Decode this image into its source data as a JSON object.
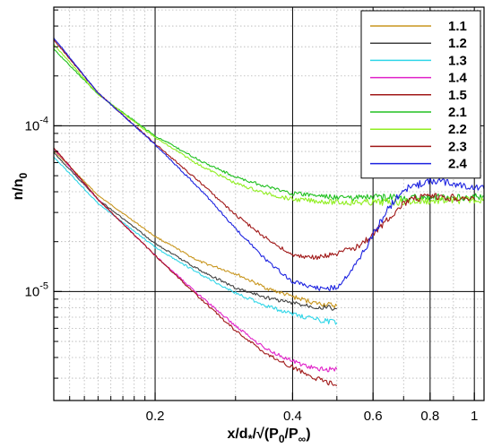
{
  "chart_data": {
    "type": "line",
    "xlabel": "x/d∗/√(P₀/P∞)",
    "ylabel": "n/n₀",
    "x_scale": "log",
    "y_scale": "log",
    "xlim": [
      0.12,
      1.05
    ],
    "ylim": [
      2.2e-06,
      0.00052
    ],
    "grid": true,
    "legend_position": "top-right",
    "x_ticks": [
      {
        "value": 0.2,
        "label": "0.2"
      },
      {
        "value": 0.4,
        "label": "0.4"
      },
      {
        "value": 0.6,
        "label": "0.6"
      },
      {
        "value": 0.8,
        "label": "0.8"
      },
      {
        "value": 1.0,
        "label": "1"
      }
    ],
    "y_ticks": [
      {
        "value": 0.0001,
        "base": "10",
        "exp": "-4"
      },
      {
        "value": 1e-05,
        "base": "10",
        "exp": "-5"
      }
    ],
    "series": [
      {
        "name": "1.1",
        "color": "#c8961e",
        "points": [
          [
            0.12,
            7.1e-05
          ],
          [
            0.15,
            3.8e-05
          ],
          [
            0.2,
            2.15e-05
          ],
          [
            0.25,
            1.52e-05
          ],
          [
            0.3,
            1.28e-05
          ],
          [
            0.35,
            1.05e-05
          ],
          [
            0.4,
            9.3e-06
          ],
          [
            0.45,
            8.5e-06
          ],
          [
            0.5,
            8.2e-06
          ]
        ]
      },
      {
        "name": "1.2",
        "color": "#404040",
        "points": [
          [
            0.12,
            6.9e-05
          ],
          [
            0.15,
            3.6e-05
          ],
          [
            0.2,
            1.95e-05
          ],
          [
            0.25,
            1.35e-05
          ],
          [
            0.3,
            1.05e-05
          ],
          [
            0.35,
            9.2e-06
          ],
          [
            0.4,
            8.5e-06
          ],
          [
            0.45,
            8.1e-06
          ],
          [
            0.5,
            7.9e-06
          ]
        ]
      },
      {
        "name": "1.3",
        "color": "#2fd6e8",
        "points": [
          [
            0.12,
            6.5e-05
          ],
          [
            0.15,
            3.4e-05
          ],
          [
            0.2,
            1.85e-05
          ],
          [
            0.25,
            1.28e-05
          ],
          [
            0.3,
            9.8e-06
          ],
          [
            0.35,
            8.2e-06
          ],
          [
            0.4,
            7.3e-06
          ],
          [
            0.45,
            6.8e-06
          ],
          [
            0.5,
            6.5e-06
          ]
        ]
      },
      {
        "name": "1.4",
        "color": "#e020c8",
        "points": [
          [
            0.12,
            7.3e-05
          ],
          [
            0.15,
            3.6e-05
          ],
          [
            0.2,
            1.65e-05
          ],
          [
            0.25,
            9.5e-06
          ],
          [
            0.3,
            6.2e-06
          ],
          [
            0.35,
            4.5e-06
          ],
          [
            0.4,
            3.8e-06
          ],
          [
            0.45,
            3.4e-06
          ],
          [
            0.5,
            3.4e-06
          ]
        ]
      },
      {
        "name": "1.5",
        "color": "#a01818",
        "points": [
          [
            0.12,
            7.4e-05
          ],
          [
            0.15,
            3.6e-05
          ],
          [
            0.2,
            1.65e-05
          ],
          [
            0.25,
            9.2e-06
          ],
          [
            0.3,
            5.8e-06
          ],
          [
            0.35,
            4.2e-06
          ],
          [
            0.4,
            3.5e-06
          ],
          [
            0.45,
            3e-06
          ],
          [
            0.5,
            2.7e-06
          ]
        ]
      },
      {
        "name": "2.1",
        "color": "#20c020",
        "points": [
          [
            0.12,
            0.00029
          ],
          [
            0.15,
            0.000155
          ],
          [
            0.2,
            8.7e-05
          ],
          [
            0.25,
            6.2e-05
          ],
          [
            0.3,
            4.9e-05
          ],
          [
            0.35,
            4.3e-05
          ],
          [
            0.4,
            3.9e-05
          ],
          [
            0.5,
            3.7e-05
          ],
          [
            0.6,
            3.68e-05
          ],
          [
            0.8,
            3.68e-05
          ],
          [
            1.0,
            3.72e-05
          ],
          [
            1.05,
            3.75e-05
          ]
        ]
      },
      {
        "name": "2.2",
        "color": "#90ee20",
        "points": [
          [
            0.12,
            0.00031
          ],
          [
            0.15,
            0.000155
          ],
          [
            0.2,
            8.5e-05
          ],
          [
            0.25,
            5.8e-05
          ],
          [
            0.3,
            4.5e-05
          ],
          [
            0.35,
            3.9e-05
          ],
          [
            0.4,
            3.6e-05
          ],
          [
            0.5,
            3.45e-05
          ],
          [
            0.6,
            3.45e-05
          ],
          [
            0.8,
            3.52e-05
          ],
          [
            1.0,
            3.58e-05
          ],
          [
            1.05,
            3.6e-05
          ]
        ]
      },
      {
        "name": "2.3",
        "color": "#a01818",
        "points": [
          [
            0.12,
            0.00033
          ],
          [
            0.15,
            0.000158
          ],
          [
            0.2,
            7.8e-05
          ],
          [
            0.25,
            4.6e-05
          ],
          [
            0.3,
            2.9e-05
          ],
          [
            0.35,
            2.1e-05
          ],
          [
            0.4,
            1.65e-05
          ],
          [
            0.45,
            1.6e-05
          ],
          [
            0.5,
            1.68e-05
          ],
          [
            0.55,
            1.85e-05
          ],
          [
            0.6,
            2.2e-05
          ],
          [
            0.65,
            2.8e-05
          ],
          [
            0.7,
            3.4e-05
          ],
          [
            0.75,
            3.65e-05
          ],
          [
            0.8,
            3.72e-05
          ],
          [
            0.9,
            3.68e-05
          ],
          [
            1.0,
            3.62e-05
          ]
        ]
      },
      {
        "name": "2.4",
        "color": "#1c22e0",
        "points": [
          [
            0.12,
            0.00034
          ],
          [
            0.15,
            0.000158
          ],
          [
            0.2,
            7.7e-05
          ],
          [
            0.25,
            4.2e-05
          ],
          [
            0.3,
            2.4e-05
          ],
          [
            0.35,
            1.55e-05
          ],
          [
            0.4,
            1.15e-05
          ],
          [
            0.45,
            1.05e-05
          ],
          [
            0.5,
            1.05e-05
          ],
          [
            0.55,
            1.45e-05
          ],
          [
            0.6,
            2.2e-05
          ],
          [
            0.65,
            3.2e-05
          ],
          [
            0.7,
            4.1e-05
          ],
          [
            0.8,
            4.7e-05
          ],
          [
            0.9,
            4.45e-05
          ],
          [
            1.0,
            4.2e-05
          ],
          [
            1.05,
            4.15e-05
          ]
        ]
      }
    ]
  }
}
